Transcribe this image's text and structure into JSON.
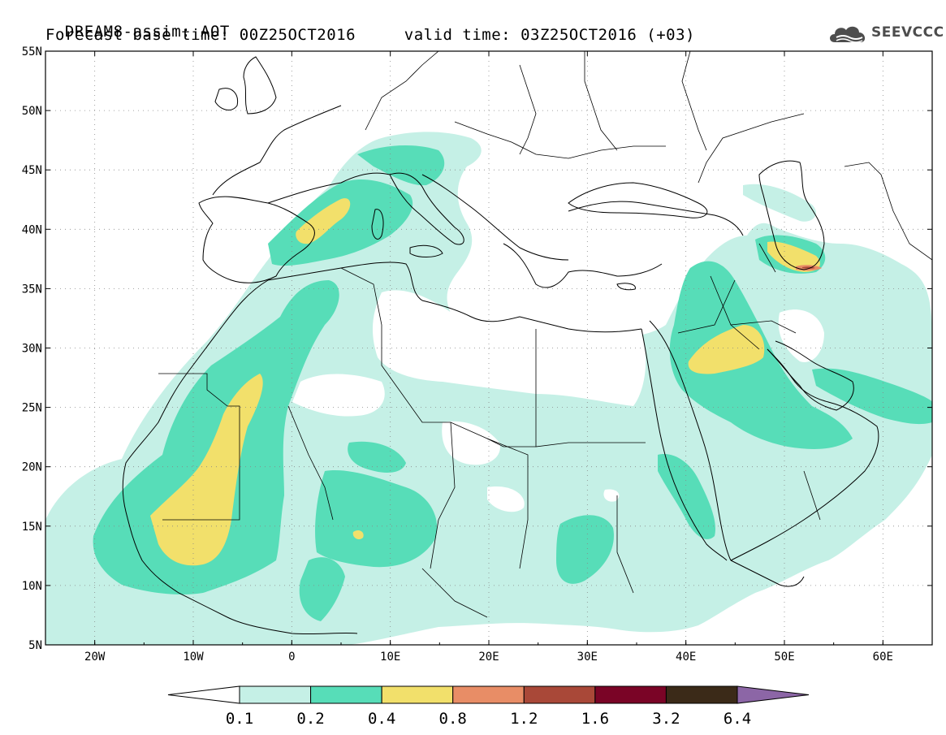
{
  "header": {
    "line1": "DREAM8-assim: AOT",
    "line2_base_label": "Forecast base time:",
    "base_time": "00Z25OCT2016",
    "line2_valid_label": "valid time:",
    "valid_time": "03Z25OCT2016 (+03)"
  },
  "logo": {
    "text": "SEEVCCC",
    "icon": "cloud-icon",
    "color": "#4d4d4d"
  },
  "map": {
    "lon_range": [
      -25,
      65
    ],
    "lat_range": [
      5,
      55
    ],
    "lat_labels": [
      "55N",
      "50N",
      "45N",
      "40N",
      "35N",
      "30N",
      "25N",
      "20N",
      "15N",
      "10N",
      "5N"
    ],
    "lon_labels": [
      "20W",
      "10W",
      "0",
      "10E",
      "20E",
      "30E",
      "40E",
      "50E",
      "60E"
    ],
    "grid": "dotted"
  },
  "colorbar": {
    "labels": [
      "0.1",
      "0.2",
      "0.4",
      "0.8",
      "1.2",
      "1.6",
      "3.2",
      "6.4"
    ],
    "colors": [
      "#ffffff",
      "#c5f0e6",
      "#57ddb8",
      "#f2e06b",
      "#e88d66",
      "#a94838",
      "#7a0426",
      "#3b2a18",
      "#8c66a6"
    ]
  },
  "fill_colors": {
    "level_0_1": "#c5f0e6",
    "level_0_2": "#57ddb8",
    "level_0_4": "#f2e06b",
    "level_0_8": "#e88d66",
    "level_1_2": "#a94838"
  }
}
